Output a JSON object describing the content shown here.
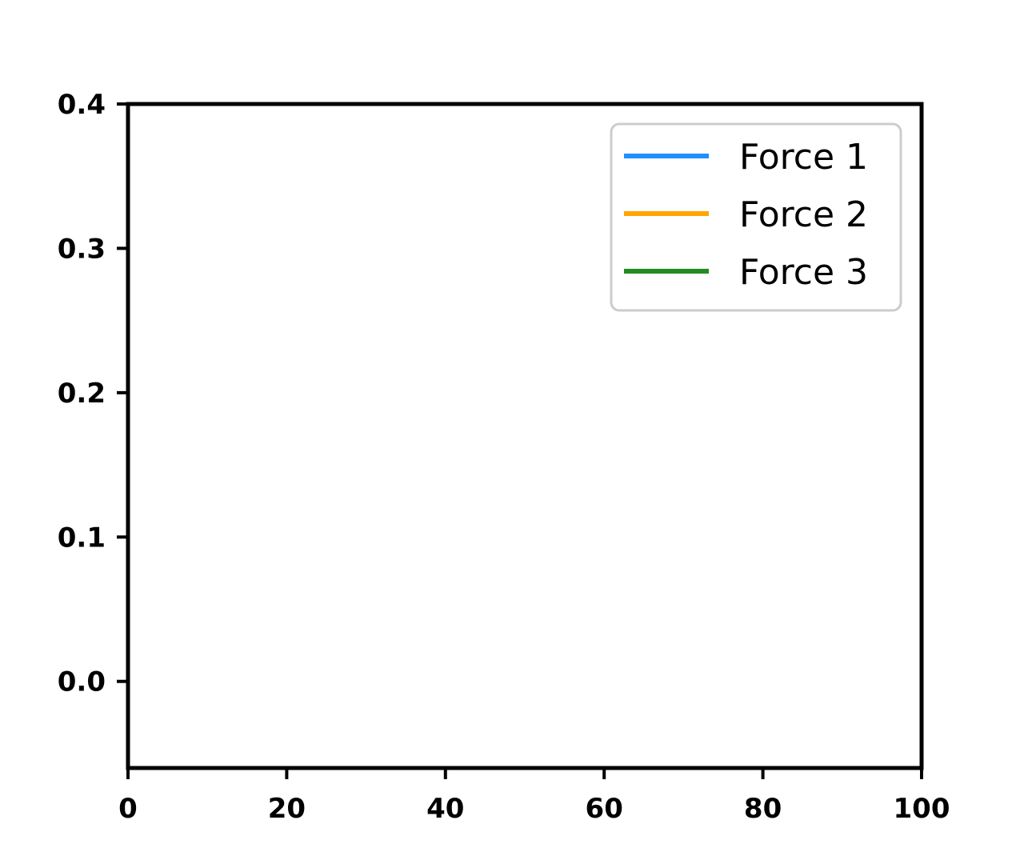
{
  "chart_data": {
    "type": "line",
    "title": "",
    "xlabel": "",
    "ylabel": "",
    "xlim": [
      0,
      100
    ],
    "ylim": [
      -0.06,
      0.4
    ],
    "x_ticks": [
      0,
      20,
      40,
      60,
      80,
      100
    ],
    "x_tick_labels": [
      "0",
      "20",
      "40",
      "60",
      "80",
      "100"
    ],
    "y_ticks": [
      0.0,
      0.1,
      0.2,
      0.3,
      0.4
    ],
    "y_tick_labels": [
      "0.0",
      "0.1",
      "0.2",
      "0.3",
      "0.4"
    ],
    "grid": false,
    "legend_position": "top-right",
    "series": [
      {
        "name": "Force 1",
        "color": "#1e90ff",
        "x": [],
        "y": []
      },
      {
        "name": "Force 2",
        "color": "#ffa500",
        "x": [],
        "y": []
      },
      {
        "name": "Force 3",
        "color": "#228b22",
        "x": [],
        "y": []
      }
    ]
  }
}
